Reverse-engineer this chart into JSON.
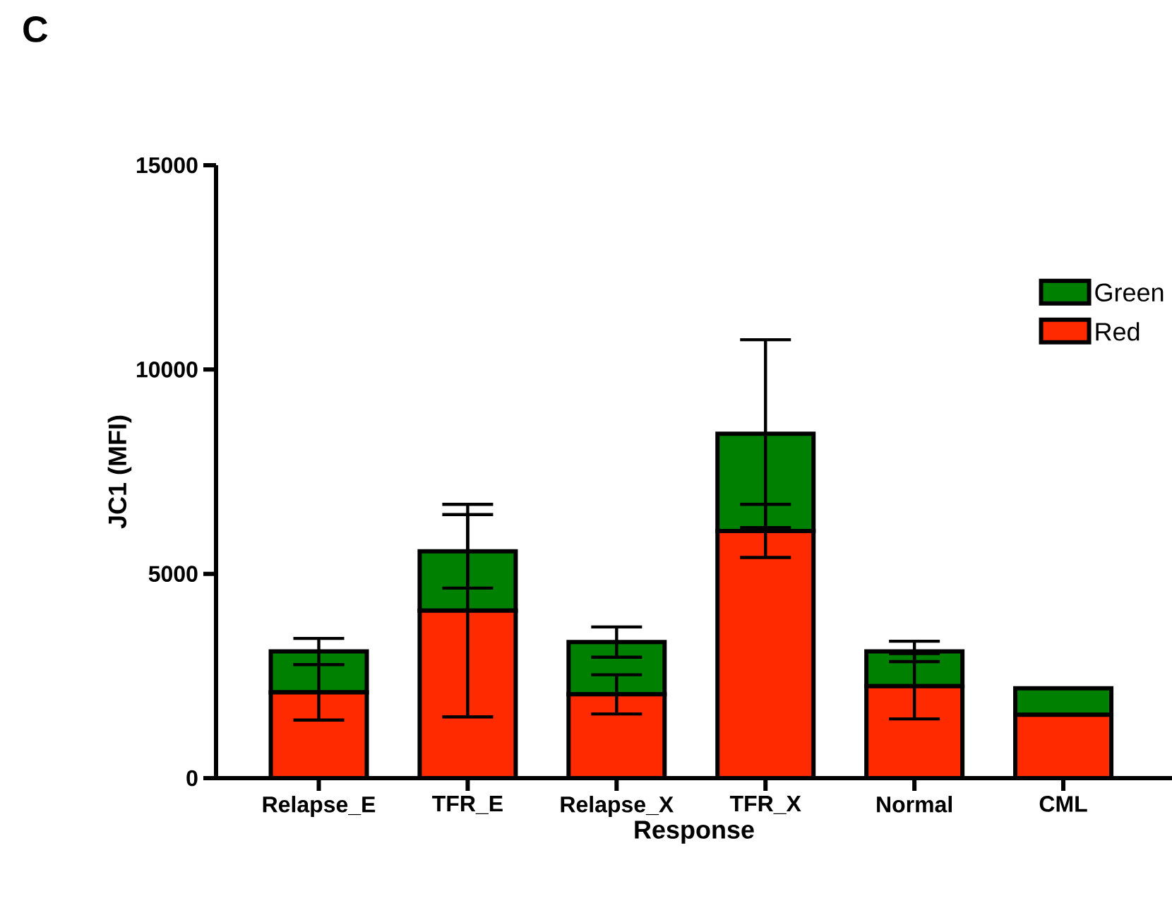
{
  "chart_data": {
    "type": "bar",
    "title": "C",
    "xlabel": "Response",
    "ylabel": "JC1 (MFI)",
    "categories": [
      "Relapse_E",
      "TFR_E",
      "Relapse_X",
      "TFR_X",
      "Normal",
      "CML"
    ],
    "stacked": true,
    "series": [
      {
        "name": "Red",
        "color": "#ff2a00",
        "values": [
          2100,
          4100,
          2050,
          6050,
          2250,
          1550
        ],
        "errors": [
          680,
          2600,
          480,
          650,
          800,
          null
        ]
      },
      {
        "name": "Green",
        "color": "#008000",
        "values": [
          1000,
          1450,
          1280,
          2380,
          850,
          650
        ],
        "errors": [
          320,
          900,
          370,
          2300,
          250,
          null
        ]
      }
    ],
    "ylim": [
      0,
      15000
    ],
    "yticks": [
      0,
      5000,
      10000,
      15000
    ],
    "grid": false,
    "legend": "top right"
  }
}
